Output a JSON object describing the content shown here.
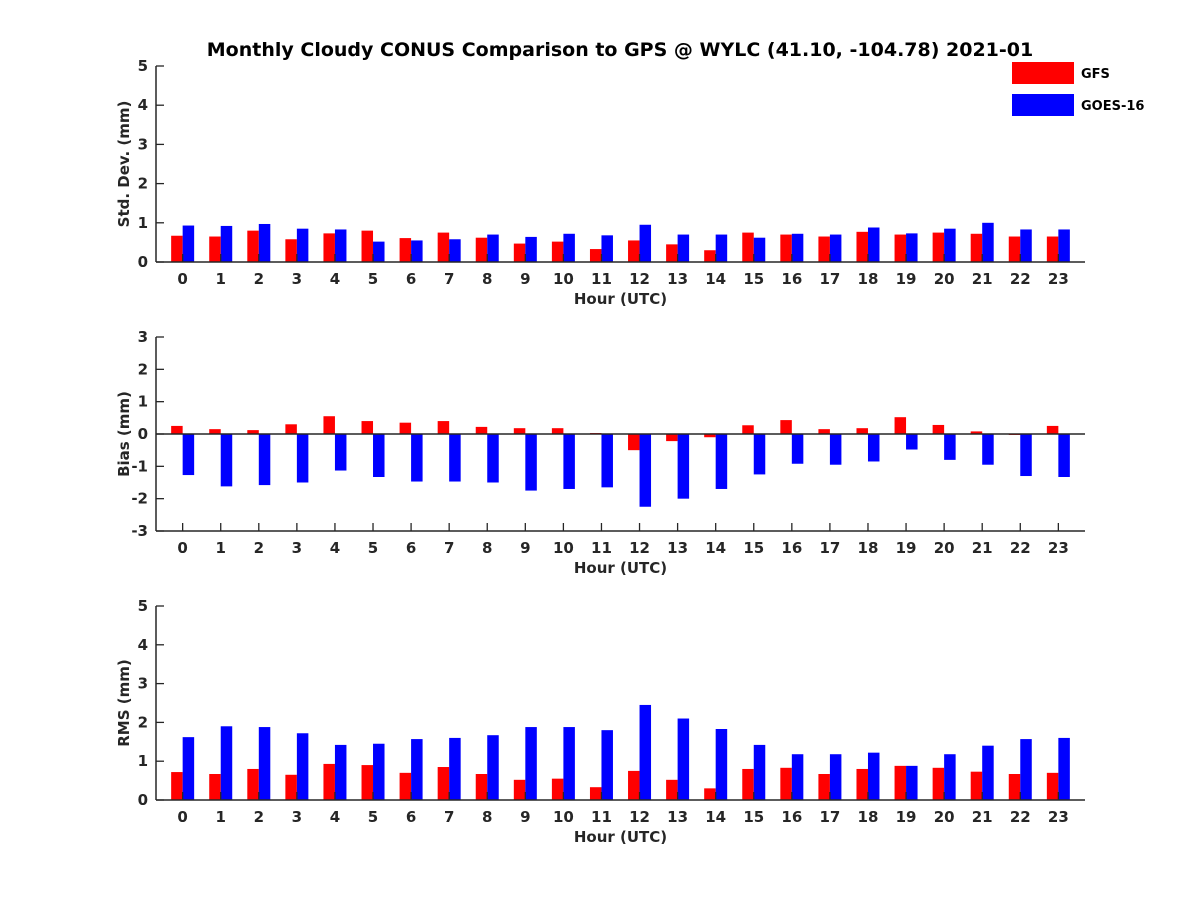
{
  "chart_data": {
    "type": "bar",
    "title": "Monthly Cloudy CONUS Comparison to GPS @ WYLC (41.10, -104.78) 2021-01",
    "categories": [
      "0",
      "1",
      "2",
      "3",
      "4",
      "5",
      "6",
      "7",
      "8",
      "9",
      "10",
      "11",
      "12",
      "13",
      "14",
      "15",
      "16",
      "17",
      "18",
      "19",
      "20",
      "21",
      "22",
      "23"
    ],
    "legend": {
      "placement": "top-right",
      "entries": [
        {
          "name": "GFS",
          "color": "#ff0000"
        },
        {
          "name": "GOES-16",
          "color": "#0000ff"
        }
      ]
    },
    "panels": [
      {
        "id": "std",
        "xlabel": "Hour (UTC)",
        "ylabel": "Std. Dev. (mm)",
        "ylim": [
          0,
          5
        ],
        "yticks": [
          "0",
          "1",
          "2",
          "3",
          "4",
          "5"
        ],
        "series": [
          {
            "name": "GFS",
            "color": "#ff0000",
            "values": [
              0.67,
              0.65,
              0.8,
              0.58,
              0.73,
              0.8,
              0.61,
              0.75,
              0.62,
              0.47,
              0.52,
              0.33,
              0.55,
              0.45,
              0.3,
              0.75,
              0.7,
              0.65,
              0.77,
              0.7,
              0.75,
              0.72,
              0.65,
              0.65
            ]
          },
          {
            "name": "GOES-16",
            "color": "#0000ff",
            "values": [
              0.93,
              0.92,
              0.97,
              0.85,
              0.83,
              0.52,
              0.55,
              0.58,
              0.7,
              0.64,
              0.72,
              0.68,
              0.95,
              0.7,
              0.7,
              0.62,
              0.72,
              0.7,
              0.88,
              0.73,
              0.85,
              1.0,
              0.83,
              0.83
            ]
          }
        ]
      },
      {
        "id": "bias",
        "xlabel": "Hour (UTC)",
        "ylabel": "Bias (mm)",
        "ylim": [
          -3,
          3
        ],
        "yticks": [
          "-3",
          "-2",
          "-1",
          "0",
          "1",
          "2",
          "3"
        ],
        "series": [
          {
            "name": "GFS",
            "color": "#ff0000",
            "values": [
              0.25,
              0.15,
              0.12,
              0.3,
              0.55,
              0.4,
              0.35,
              0.4,
              0.22,
              0.18,
              0.18,
              0.03,
              -0.5,
              -0.22,
              -0.1,
              0.27,
              0.43,
              0.15,
              0.18,
              0.52,
              0.28,
              0.08,
              -0.03,
              0.25
            ]
          },
          {
            "name": "GOES-16",
            "color": "#0000ff",
            "values": [
              -1.27,
              -1.62,
              -1.58,
              -1.5,
              -1.13,
              -1.33,
              -1.47,
              -1.47,
              -1.5,
              -1.75,
              -1.7,
              -1.65,
              -2.25,
              -2.0,
              -1.7,
              -1.25,
              -0.92,
              -0.95,
              -0.85,
              -0.48,
              -0.8,
              -0.95,
              -1.3,
              -1.33
            ]
          }
        ]
      },
      {
        "id": "rms",
        "xlabel": "Hour (UTC)",
        "ylabel": "RMS (mm)",
        "ylim": [
          0,
          5
        ],
        "yticks": [
          "0",
          "1",
          "2",
          "3",
          "4",
          "5"
        ],
        "series": [
          {
            "name": "GFS",
            "color": "#ff0000",
            "values": [
              0.72,
              0.67,
              0.8,
              0.65,
              0.93,
              0.9,
              0.7,
              0.85,
              0.67,
              0.52,
              0.55,
              0.33,
              0.75,
              0.52,
              0.3,
              0.8,
              0.83,
              0.67,
              0.8,
              0.88,
              0.83,
              0.73,
              0.67,
              0.7
            ]
          },
          {
            "name": "GOES-16",
            "color": "#0000ff",
            "values": [
              1.62,
              1.9,
              1.88,
              1.72,
              1.42,
              1.45,
              1.57,
              1.6,
              1.67,
              1.88,
              1.88,
              1.8,
              2.45,
              2.1,
              1.83,
              1.42,
              1.18,
              1.18,
              1.22,
              0.88,
              1.18,
              1.4,
              1.57,
              1.6
            ]
          }
        ]
      }
    ]
  }
}
